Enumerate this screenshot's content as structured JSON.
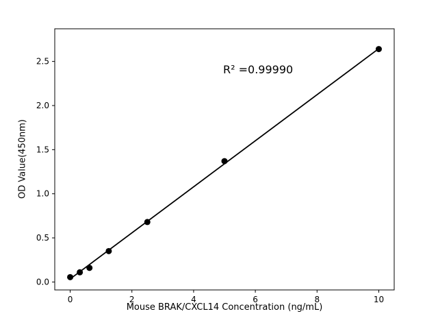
{
  "chart_data": {
    "type": "scatter",
    "title": "",
    "xlabel": "Mouse BRAK/CXCL14 Concentration (ng/mL)",
    "ylabel": "OD Value(450nm)",
    "annotation": "R² =0.99990",
    "x": [
      0,
      0.3125,
      0.625,
      1.25,
      2.5,
      5,
      10
    ],
    "y": [
      0.055,
      0.11,
      0.16,
      0.35,
      0.68,
      1.37,
      2.64
    ],
    "fit_line": {
      "x": [
        0,
        10
      ],
      "y": [
        0.035,
        2.645
      ]
    },
    "xlim": [
      -0.5,
      10.5
    ],
    "ylim": [
      -0.09,
      2.87
    ],
    "xticks": {
      "values": [
        0,
        2,
        4,
        6,
        8,
        10
      ],
      "labels": [
        "0",
        "2",
        "4",
        "6",
        "8",
        "10"
      ]
    },
    "yticks": {
      "values": [
        0,
        0.5,
        1.0,
        1.5,
        2.0,
        2.5
      ],
      "labels": [
        "0.0",
        "0.5",
        "1.0",
        "1.5",
        "2.0",
        "2.5"
      ]
    },
    "grid": false,
    "legend_position": "none",
    "marker_color": "#000000",
    "line_color": "#000000",
    "axis_color": "#000000",
    "background": "#ffffff"
  }
}
